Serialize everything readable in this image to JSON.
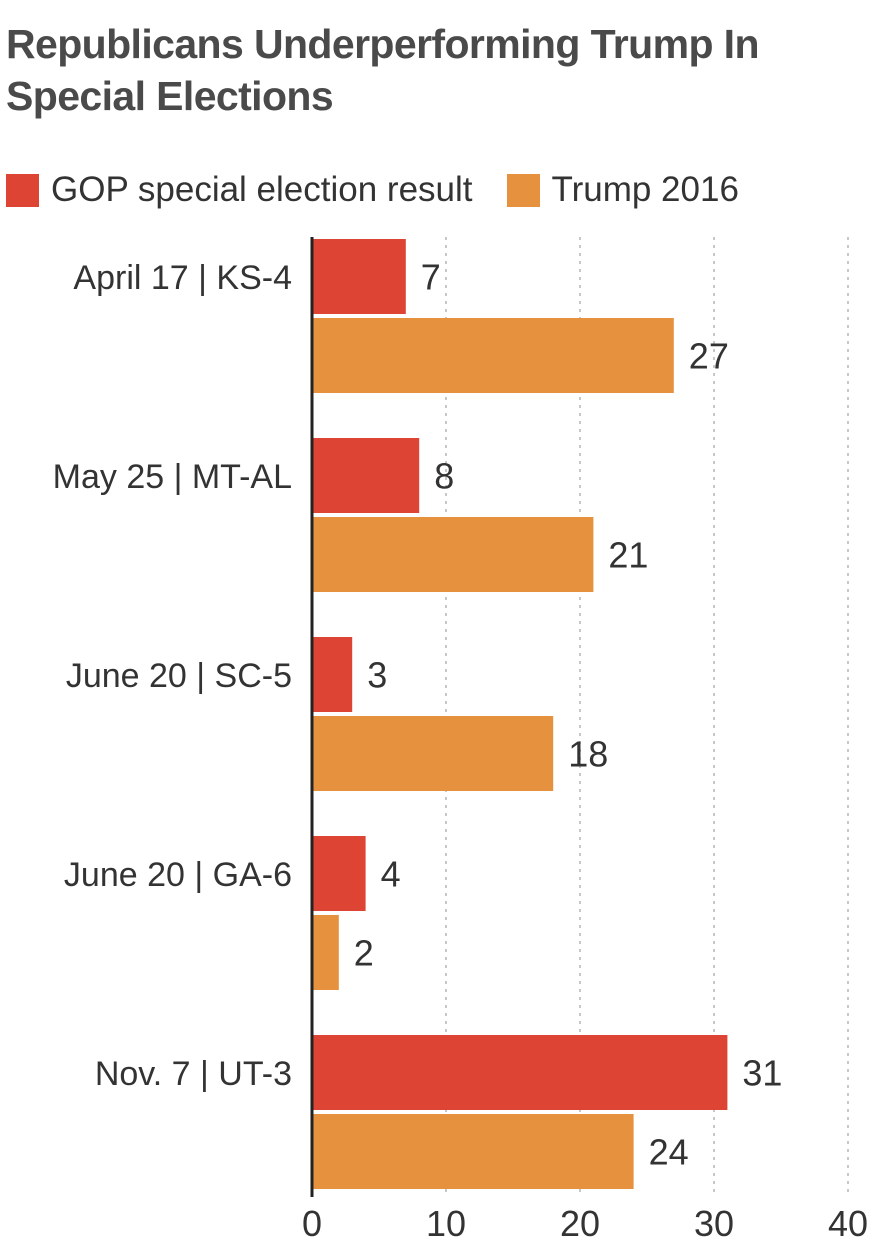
{
  "chart_data": {
    "type": "bar",
    "orientation": "horizontal",
    "title_lines": [
      "Republicans Underperforming Trump In",
      "Special Elections"
    ],
    "categories": [
      "April 17 | KS-4",
      "May 25 | MT-AL",
      "June 20 | SC-5",
      "June 20 | GA-6",
      "Nov. 7 | UT-3"
    ],
    "series": [
      {
        "name": "GOP special election result",
        "color": "#dd4433",
        "values": [
          7,
          8,
          3,
          4,
          31
        ]
      },
      {
        "name": "Trump 2016",
        "color": "#e6913d",
        "values": [
          27,
          21,
          18,
          2,
          24
        ]
      }
    ],
    "xlim": [
      0,
      40
    ],
    "xticks": [
      0,
      10,
      20,
      30,
      40
    ],
    "grid": true,
    "legend": "top-left"
  }
}
